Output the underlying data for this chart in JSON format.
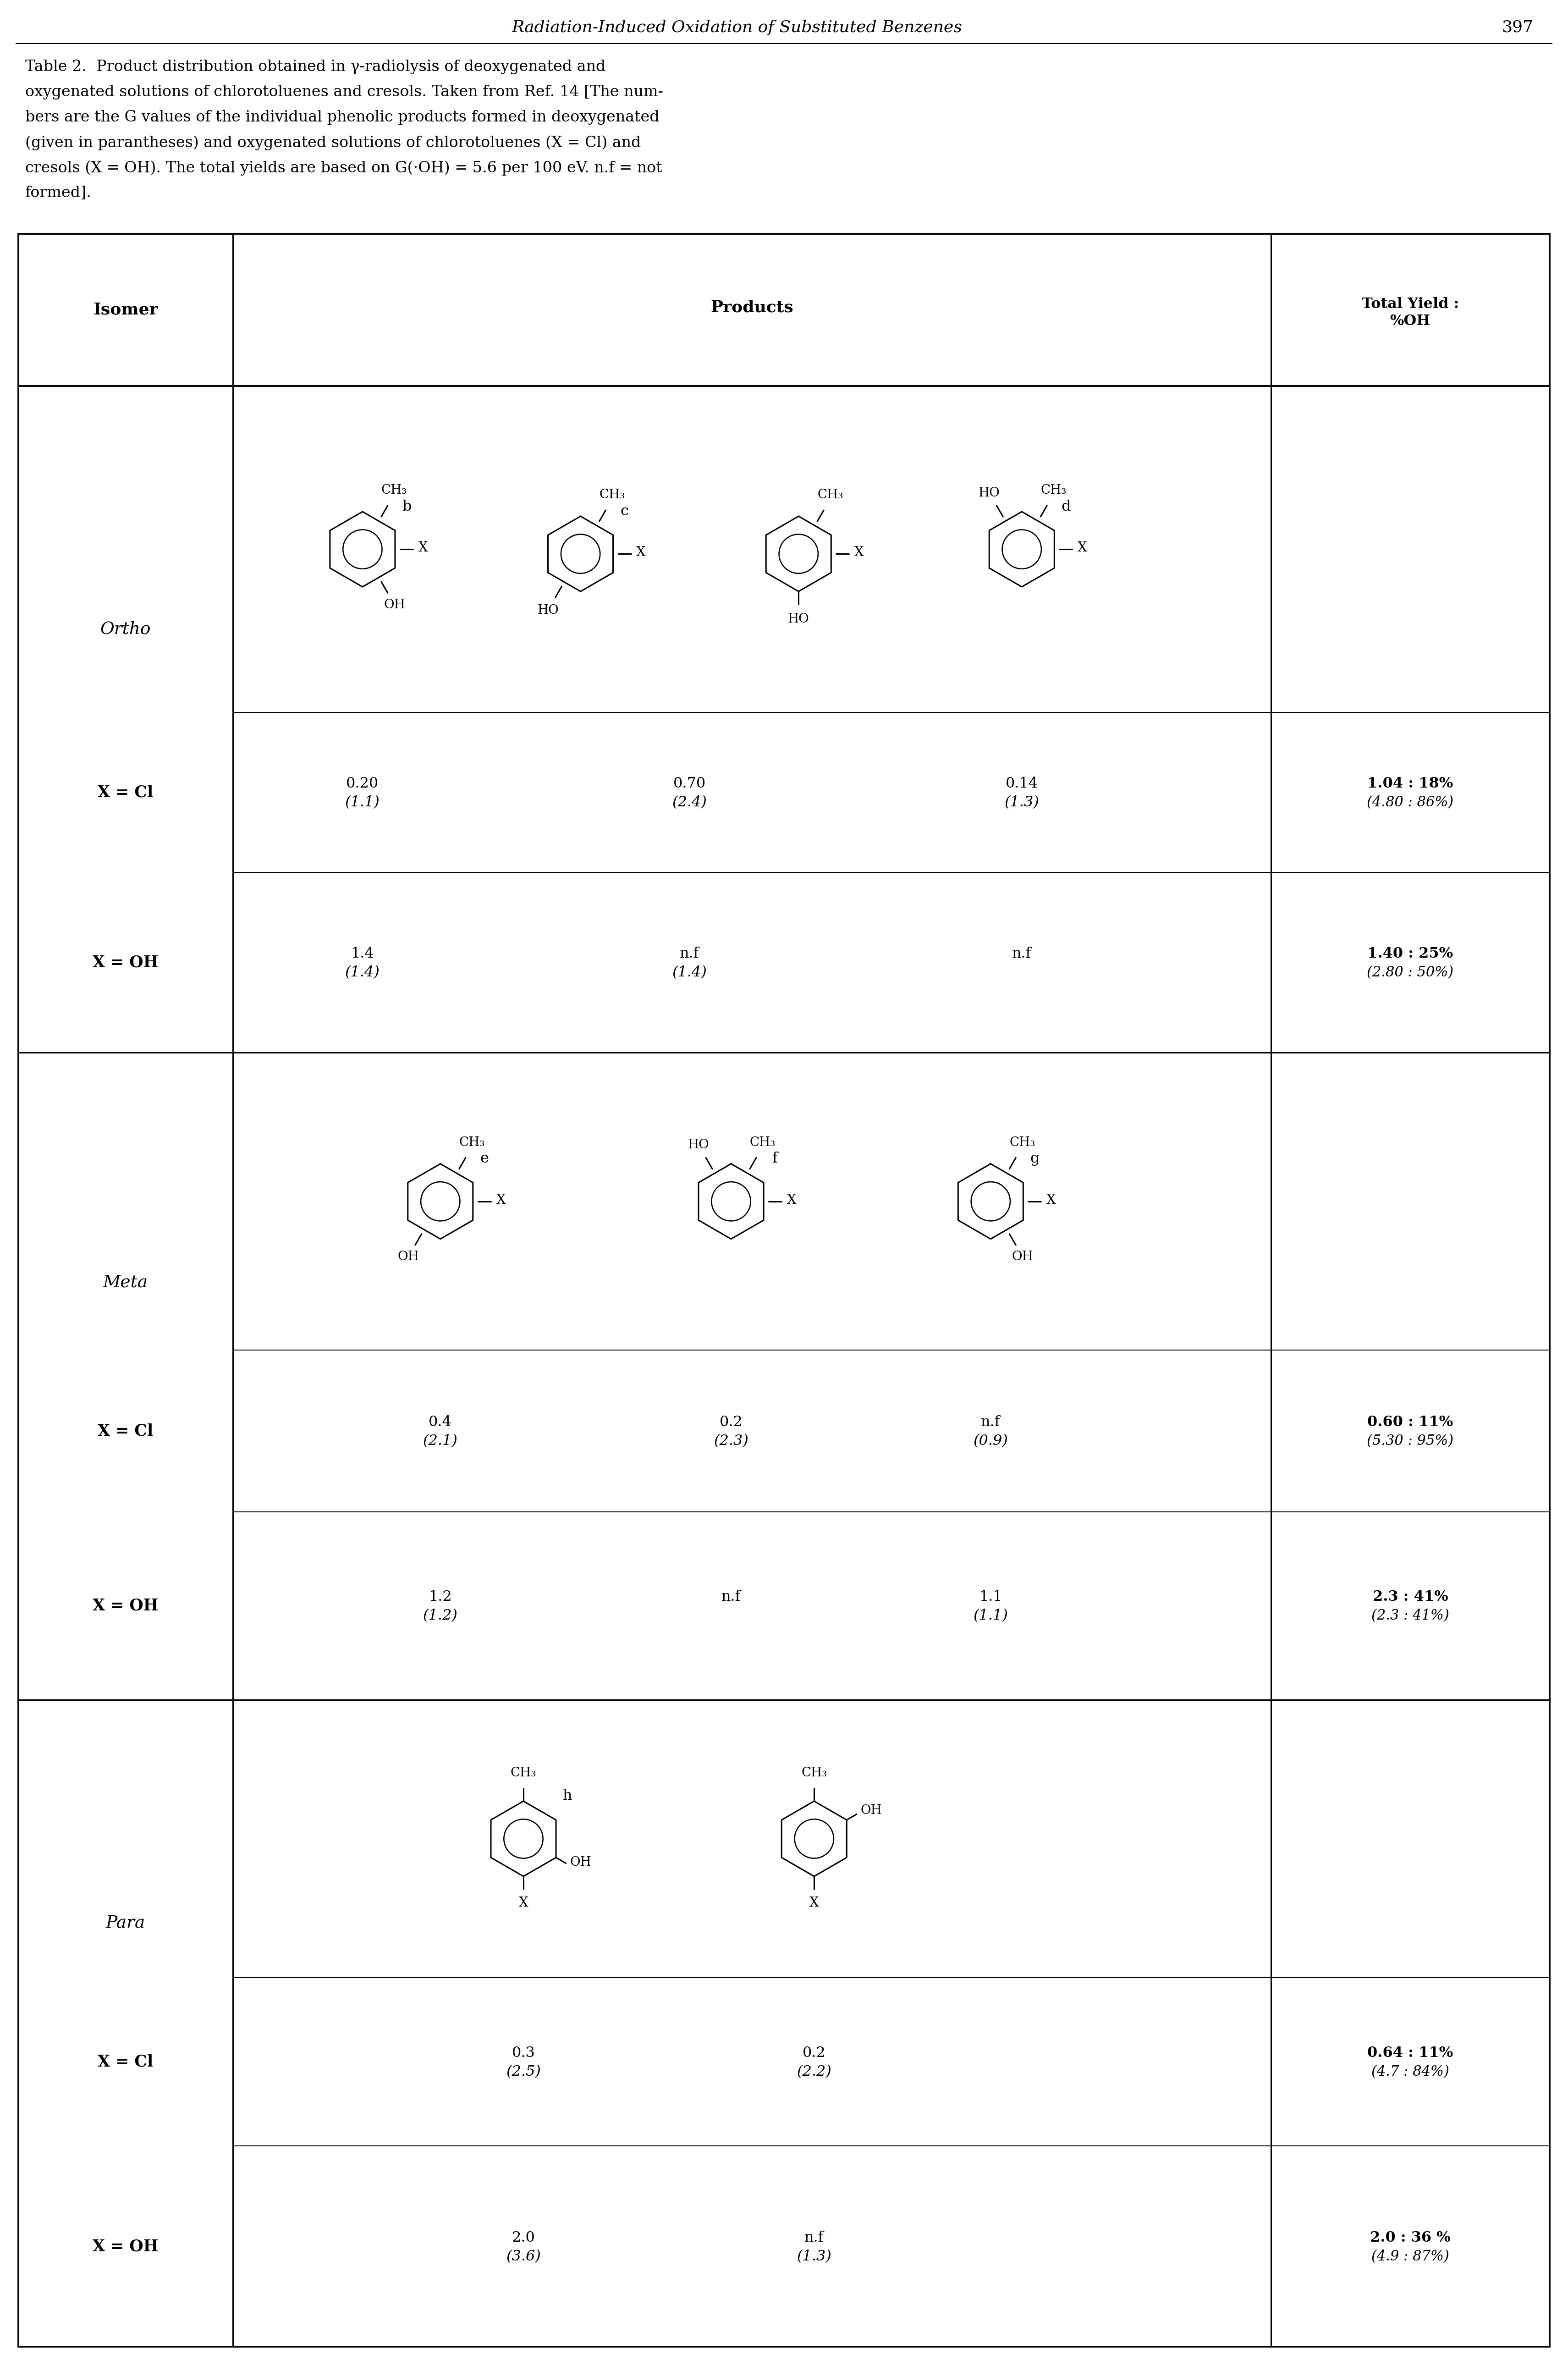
{
  "header_title": "Radiation-Induced Oxidation of Substituted Benzenes",
  "header_page": "397",
  "caption": [
    [
      "Table 2.",
      false,
      true
    ],
    [
      "  Product distribution obtained in γ-radiolysis of deoxygenated and",
      false,
      false
    ],
    [
      "oxygenated solutions of chlorotoluenes and cresols. Taken from Ref. 14 [The num-",
      false,
      false
    ],
    [
      "bers are the G values of the individual phenolic products formed in deoxygenated",
      false,
      false
    ],
    [
      "(given in parantheses) and oxygenated solutions of chlorotoluenes (X = Cl) and",
      false,
      false
    ],
    [
      "cresols (X = OH). The total yields are based on G(·OH) = 5.6 per 100 eV. n.f = not",
      false,
      false
    ],
    [
      "formed].",
      false,
      false
    ]
  ],
  "bg_color": "#ffffff"
}
